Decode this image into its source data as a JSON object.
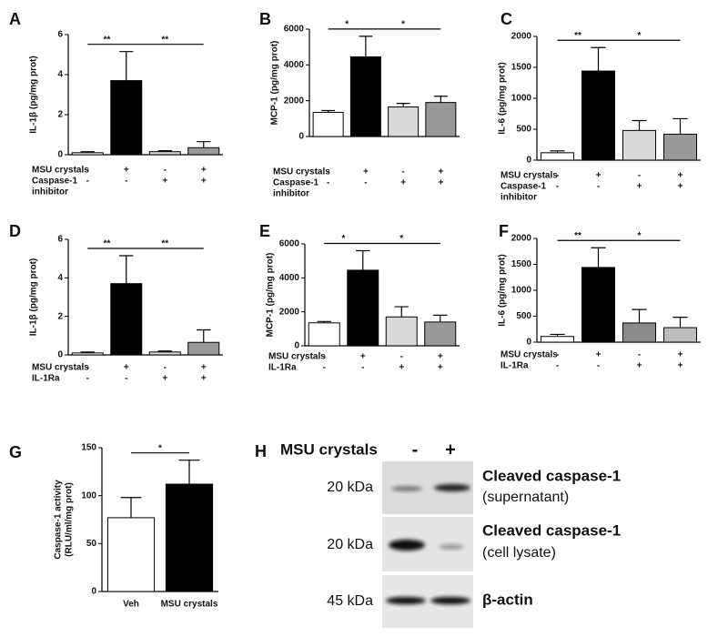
{
  "chart_data": [
    {
      "type": "bar",
      "panel": "A",
      "ylabel": "IL-1β (pg/mg prot)",
      "ylim": [
        0,
        6
      ],
      "yticks": [
        0,
        2,
        4,
        6
      ],
      "values": [
        0.1,
        3.7,
        0.15,
        0.35
      ],
      "errors": [
        0.05,
        1.45,
        0.05,
        0.3
      ],
      "colors": [
        "#ffffff",
        "#000000",
        "#d9d9d9",
        "#999999"
      ],
      "conditions": [
        {
          "label": [
            "MSU crystals"
          ],
          "signs": [
            "-",
            "+",
            "-",
            "+"
          ]
        },
        {
          "label": [
            "Caspase-1",
            "inhibitor"
          ],
          "signs": [
            "-",
            "-",
            "+",
            "+"
          ]
        }
      ],
      "significance": [
        "**",
        "**"
      ]
    },
    {
      "type": "bar",
      "panel": "B",
      "ylabel": "MCP-1 (pg/mg prot)",
      "ylim": [
        0,
        6000
      ],
      "yticks": [
        0,
        2000,
        4000,
        6000
      ],
      "values": [
        1350,
        4450,
        1650,
        1900
      ],
      "errors": [
        100,
        1150,
        200,
        350
      ],
      "colors": [
        "#ffffff",
        "#000000",
        "#d9d9d9",
        "#999999"
      ],
      "conditions": [
        {
          "label": [
            "MSU crystals"
          ],
          "signs": [
            "-",
            "+",
            "-",
            "+"
          ]
        },
        {
          "label": [
            "Caspase-1",
            "inhibitor"
          ],
          "signs": [
            "-",
            "-",
            "+",
            "+"
          ]
        }
      ],
      "significance": [
        "*",
        "*"
      ]
    },
    {
      "type": "bar",
      "panel": "C",
      "ylabel": "IL-6 (pg/mg prot)",
      "ylim": [
        0,
        2000
      ],
      "yticks": [
        0,
        500,
        1000,
        1500,
        2000
      ],
      "values": [
        120,
        1440,
        480,
        420
      ],
      "errors": [
        30,
        380,
        160,
        250
      ],
      "colors": [
        "#ffffff",
        "#000000",
        "#d9d9d9",
        "#999999"
      ],
      "conditions": [
        {
          "label": [
            "MSU crystals"
          ],
          "signs": [
            "-",
            "+",
            "-",
            "+"
          ]
        },
        {
          "label": [
            "Caspase-1",
            "inhibitor"
          ],
          "signs": [
            "-",
            "-",
            "+",
            "+"
          ]
        }
      ],
      "significance": [
        "**",
        "*"
      ]
    },
    {
      "type": "bar",
      "panel": "D",
      "ylabel": "IL-1β (pg/mg prot)",
      "ylim": [
        0,
        6
      ],
      "yticks": [
        0,
        2,
        4,
        6
      ],
      "values": [
        0.1,
        3.7,
        0.15,
        0.65
      ],
      "errors": [
        0.05,
        1.45,
        0.05,
        0.65
      ],
      "colors": [
        "#ffffff",
        "#000000",
        "#d9d9d9",
        "#999999"
      ],
      "conditions": [
        {
          "label": [
            "MSU crystals"
          ],
          "signs": [
            "-",
            "+",
            "-",
            "+"
          ]
        },
        {
          "label": [
            "IL-1Ra"
          ],
          "signs": [
            "-",
            "-",
            "+",
            "+"
          ]
        }
      ],
      "significance": [
        "**",
        "**"
      ]
    },
    {
      "type": "bar",
      "panel": "E",
      "ylabel": "MCP-1 (pg/mg prot)",
      "ylim": [
        0,
        6000
      ],
      "yticks": [
        0,
        2000,
        4000,
        6000
      ],
      "values": [
        1350,
        4450,
        1700,
        1400
      ],
      "errors": [
        80,
        1150,
        600,
        400
      ],
      "colors": [
        "#ffffff",
        "#000000",
        "#d9d9d9",
        "#999999"
      ],
      "conditions": [
        {
          "label": [
            "MSU crystals"
          ],
          "signs": [
            "-",
            "+",
            "-",
            "+"
          ]
        },
        {
          "label": [
            "IL-1Ra"
          ],
          "signs": [
            "-",
            "-",
            "+",
            "+"
          ]
        }
      ],
      "significance": [
        "*",
        "*"
      ]
    },
    {
      "type": "bar",
      "panel": "F",
      "ylabel": "IL-6 (pg/mg prot)",
      "ylim": [
        0,
        2000
      ],
      "yticks": [
        0,
        500,
        1000,
        1500,
        2000
      ],
      "values": [
        110,
        1440,
        370,
        280
      ],
      "errors": [
        40,
        380,
        260,
        200
      ],
      "colors": [
        "#ffffff",
        "#000000",
        "#8c8c8c",
        "#bdbdbd"
      ],
      "conditions": [
        {
          "label": [
            "MSU crystals"
          ],
          "signs": [
            "-",
            "+",
            "-",
            "+"
          ]
        },
        {
          "label": [
            "IL-1Ra"
          ],
          "signs": [
            "-",
            "-",
            "+",
            "+"
          ]
        }
      ],
      "significance": [
        "**",
        "*"
      ]
    },
    {
      "type": "bar",
      "panel": "G",
      "ylabel": [
        "Caspase-1 activity",
        "(RLU/ml/mg prot)"
      ],
      "ylim": [
        0,
        150
      ],
      "yticks": [
        0,
        50,
        100,
        150
      ],
      "categories": [
        "Veh",
        "MSU crystals"
      ],
      "values": [
        77,
        112
      ],
      "errors": [
        21,
        25
      ],
      "colors": [
        "#ffffff",
        "#000000"
      ],
      "significance": [
        "*"
      ]
    }
  ],
  "blot": {
    "panel": "H",
    "header": "MSU crystals",
    "lanes": [
      "-",
      "+"
    ],
    "rows": [
      {
        "size": "20 kDa",
        "title": "Cleaved caspase-1",
        "subtitle": "(supernatant)"
      },
      {
        "size": "20 kDa",
        "title": "Cleaved caspase-1",
        "subtitle": "(cell lysate)"
      },
      {
        "size": "45 kDa",
        "title": "β-actin"
      }
    ]
  }
}
